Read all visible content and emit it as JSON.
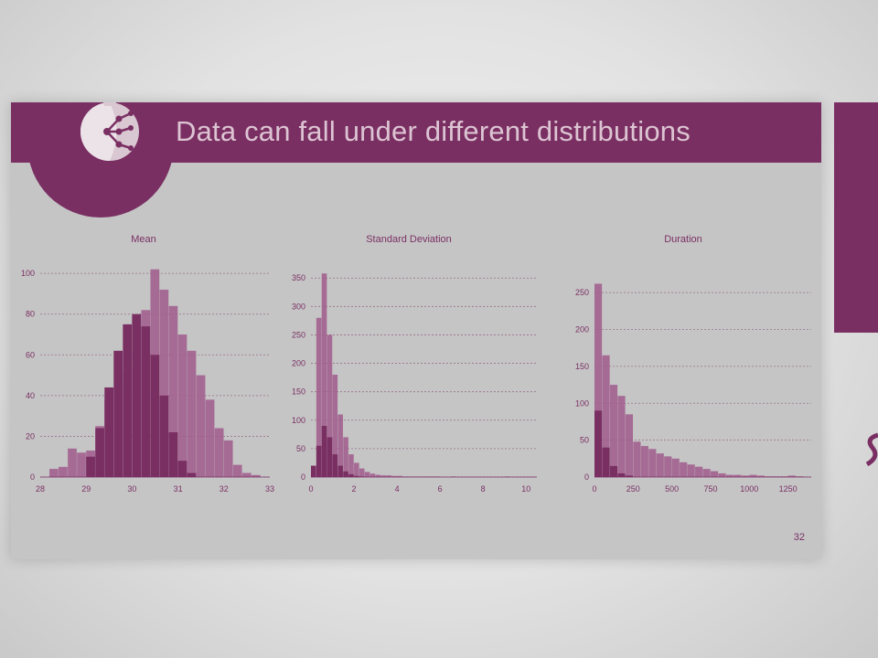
{
  "slide": {
    "title": "Data can fall under different distributions",
    "page_number": "32"
  },
  "colors": {
    "accent": "#7a2f63",
    "accent_light": "#a05a8c",
    "slide_bg": "#c5c5c5",
    "title_text": "#dcc4d2"
  },
  "icons": {
    "logo": "pomegranate-network-icon",
    "side": "purple-panel"
  },
  "chart_data": [
    {
      "type": "bar",
      "title": "Mean",
      "xticks": [
        "28",
        "29",
        "30",
        "31",
        "32",
        "33"
      ],
      "yticks": [
        "0",
        "20",
        "40",
        "60",
        "80",
        "100"
      ],
      "xlim": [
        28,
        33
      ],
      "ylim": [
        0,
        105
      ],
      "grid": true,
      "series": [
        {
          "x": [
            28.2,
            28.4,
            28.6,
            28.8,
            29.0,
            29.2,
            29.4,
            29.6,
            29.8,
            30.0,
            30.2,
            30.4,
            30.6,
            30.8,
            31.0,
            31.2,
            31.4,
            31.6,
            31.8,
            32.0,
            32.2,
            32.4,
            32.6,
            32.8
          ],
          "values": [
            4,
            5,
            14,
            12,
            13,
            25,
            38,
            44,
            52,
            78,
            82,
            102,
            92,
            84,
            70,
            62,
            50,
            38,
            24,
            18,
            6,
            2,
            1,
            0
          ]
        },
        {
          "x": [
            29.0,
            29.2,
            29.4,
            29.6,
            29.8,
            30.0,
            30.2,
            30.4,
            30.6,
            30.8,
            31.0,
            31.2
          ],
          "values": [
            10,
            24,
            44,
            62,
            75,
            80,
            74,
            60,
            40,
            22,
            8,
            2
          ]
        }
      ]
    },
    {
      "type": "bar",
      "title": "Standard Deviation",
      "xticks": [
        "0",
        "2",
        "4",
        "6",
        "8",
        "10"
      ],
      "yticks": [
        "0",
        "50",
        "100",
        "150",
        "200",
        "250",
        "300",
        "350"
      ],
      "xlim": [
        0,
        10.5
      ],
      "ylim": [
        0,
        360
      ],
      "grid": true,
      "series": [
        {
          "x": [
            0.0,
            0.25,
            0.5,
            0.75,
            1.0,
            1.25,
            1.5,
            1.75,
            2.0,
            2.25,
            2.5,
            2.75,
            3.0,
            3.25,
            3.5,
            3.75,
            4.0,
            4.25,
            4.5,
            4.75,
            5.0,
            5.25,
            5.5,
            5.75,
            6.0,
            6.5,
            7.0,
            7.5,
            8.0,
            8.5,
            9.0,
            9.5,
            10.0
          ],
          "values": [
            0,
            280,
            358,
            250,
            180,
            110,
            70,
            40,
            25,
            15,
            9,
            6,
            4,
            3,
            3,
            2,
            2,
            1,
            1,
            1,
            1,
            1,
            1,
            1,
            0,
            1,
            0,
            0,
            0,
            0,
            1,
            0,
            0
          ]
        },
        {
          "x": [
            0.0,
            0.25,
            0.5,
            0.75,
            1.0,
            1.25,
            1.5,
            1.75,
            2.0,
            2.25
          ],
          "values": [
            20,
            55,
            90,
            70,
            40,
            20,
            10,
            5,
            2,
            1
          ]
        }
      ]
    },
    {
      "type": "bar",
      "title": "Duration",
      "xticks": [
        "0",
        "250",
        "500",
        "750",
        "1000",
        "1250"
      ],
      "yticks": [
        "0",
        "50",
        "100",
        "150",
        "200",
        "250"
      ],
      "xlim": [
        0,
        1400
      ],
      "ylim": [
        0,
        270
      ],
      "grid": true,
      "series": [
        {
          "x": [
            0,
            50,
            100,
            150,
            200,
            250,
            300,
            350,
            400,
            450,
            500,
            550,
            600,
            650,
            700,
            750,
            800,
            850,
            900,
            950,
            1000,
            1050,
            1100,
            1150,
            1200,
            1250,
            1300,
            1350
          ],
          "values": [
            262,
            165,
            125,
            110,
            85,
            48,
            42,
            38,
            32,
            28,
            25,
            20,
            17,
            14,
            11,
            8,
            5,
            3,
            3,
            2,
            3,
            2,
            1,
            1,
            1,
            2,
            1,
            0
          ]
        },
        {
          "x": [
            0,
            50,
            100,
            150,
            200
          ],
          "values": [
            90,
            40,
            15,
            5,
            2
          ]
        }
      ]
    }
  ]
}
